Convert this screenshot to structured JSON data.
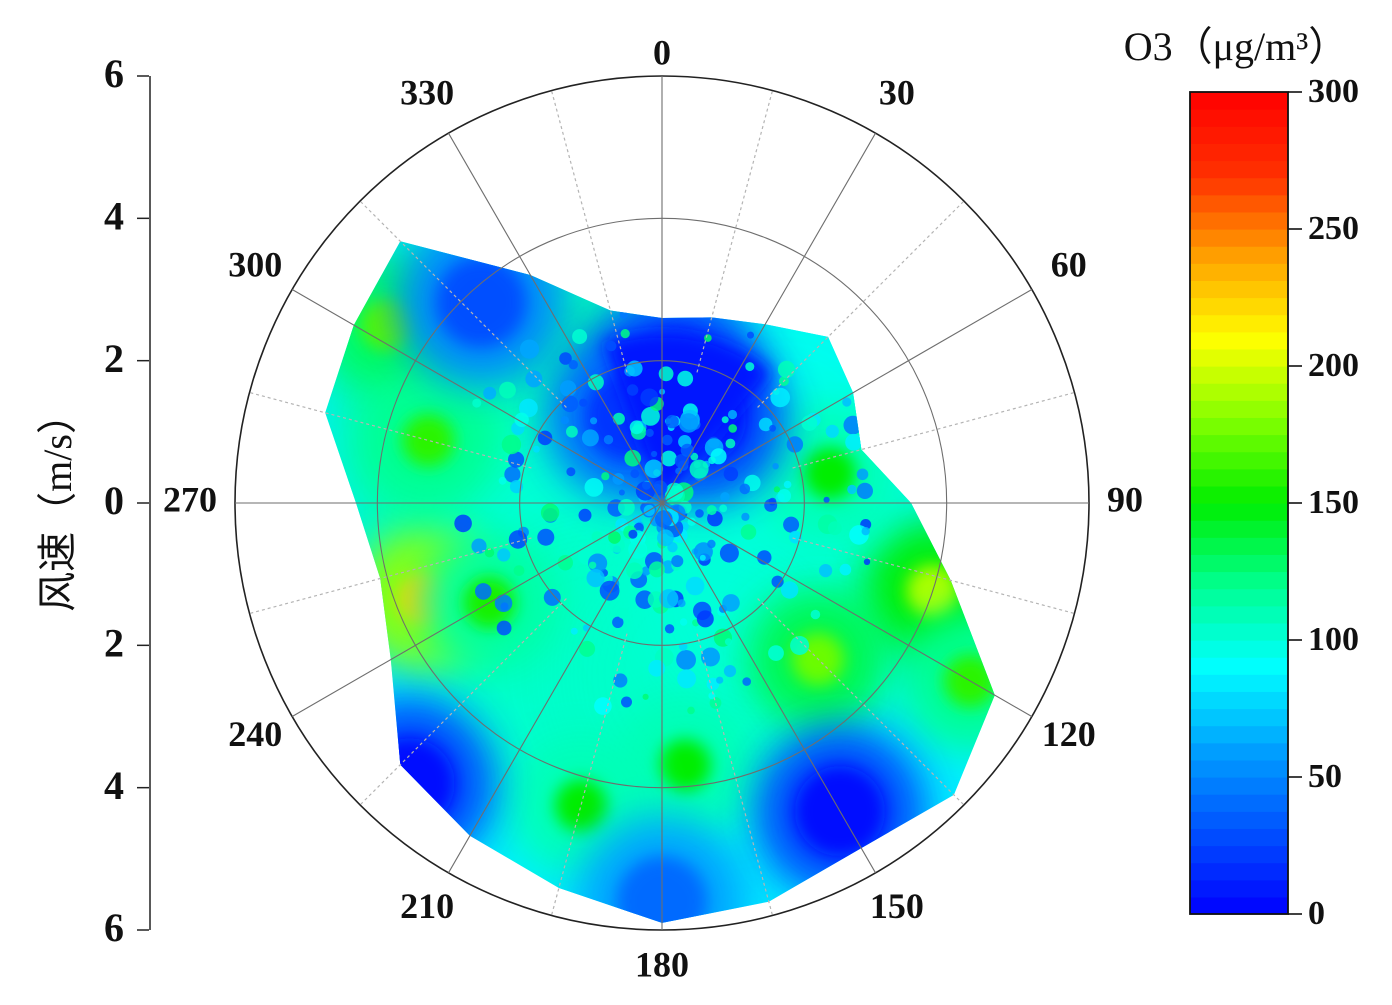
{
  "chart_data": {
    "type": "heatmap",
    "subtype": "polar-contour",
    "title": "",
    "colorbar": {
      "title": "O3（μg/m³）",
      "range": [
        0,
        300
      ],
      "ticks": [
        0,
        50,
        100,
        150,
        200,
        250,
        300
      ],
      "tick_labels": [
        "0",
        "50",
        "100",
        "150",
        "200",
        "250",
        "300"
      ],
      "colormap": [
        "#0000ff",
        "#0050ff",
        "#00a0ff",
        "#00ffff",
        "#00ff90",
        "#00ee00",
        "#80ff00",
        "#ffff00",
        "#ffa000",
        "#ff3000",
        "#ff0000"
      ]
    },
    "radial_axis": {
      "label": "风速（m/s）",
      "range": [
        0,
        6
      ],
      "ticks": [
        6,
        4,
        2,
        0,
        2,
        4,
        6
      ],
      "tick_labels": [
        "6",
        "4",
        "2",
        "0",
        "2",
        "4",
        "6"
      ],
      "rings": [
        2,
        4,
        6
      ]
    },
    "angular_axis": {
      "unit": "degrees",
      "direction": "clockwise",
      "zero": "top",
      "ticks": [
        0,
        30,
        60,
        90,
        120,
        150,
        180,
        210,
        240,
        270,
        300,
        330
      ],
      "tick_labels": [
        "0",
        "30",
        "60",
        "90",
        "120",
        "150",
        "180",
        "210",
        "240",
        "270",
        "300",
        "330"
      ],
      "minor_spokes": [
        15,
        45,
        75,
        105,
        135,
        165,
        195,
        225,
        255,
        285,
        315,
        345
      ]
    },
    "data_extent": {
      "direction_deg": [
        0,
        15,
        30,
        45,
        60,
        75,
        90,
        105,
        120,
        135,
        150,
        165,
        180,
        195,
        210,
        225,
        240,
        255,
        270,
        285,
        300,
        315,
        330,
        345
      ],
      "max_speed": [
        2.6,
        2.7,
        2.9,
        3.3,
        3.1,
        2.9,
        3.5,
        4.2,
        5.4,
        5.8,
        5.6,
        5.8,
        5.9,
        5.6,
        5.4,
        5.2,
        4.4,
        4.1,
        4.3,
        4.9,
        5.0,
        5.2,
        3.7,
        2.8
      ]
    },
    "hotspots": [
      {
        "direction_deg": 248,
        "speed": 3.6,
        "o3": 225
      },
      {
        "direction_deg": 108,
        "speed": 4.0,
        "o3": 190
      },
      {
        "direction_deg": 303,
        "speed": 4.6,
        "o3": 170
      },
      {
        "direction_deg": 135,
        "speed": 3.1,
        "o3": 175
      },
      {
        "direction_deg": 80,
        "speed": 2.4,
        "o3": 150
      },
      {
        "direction_deg": 285,
        "speed": 3.4,
        "o3": 160
      },
      {
        "direction_deg": 240,
        "speed": 2.8,
        "o3": 155
      },
      {
        "direction_deg": 175,
        "speed": 3.7,
        "o3": 150
      },
      {
        "direction_deg": 195,
        "speed": 4.4,
        "o3": 150
      },
      {
        "direction_deg": 120,
        "speed": 5.0,
        "o3": 160
      }
    ],
    "coldspots": [
      {
        "direction_deg": 5,
        "speed": 1.8,
        "o3": 5
      },
      {
        "direction_deg": 25,
        "speed": 1.3,
        "o3": 5
      },
      {
        "direction_deg": 150,
        "speed": 5.0,
        "o3": 5
      },
      {
        "direction_deg": 222,
        "speed": 5.3,
        "o3": 5
      },
      {
        "direction_deg": 318,
        "speed": 3.8,
        "o3": 30
      },
      {
        "direction_deg": 340,
        "speed": 1.3,
        "o3": 20
      },
      {
        "direction_deg": 180,
        "speed": 5.6,
        "o3": 40
      }
    ]
  }
}
